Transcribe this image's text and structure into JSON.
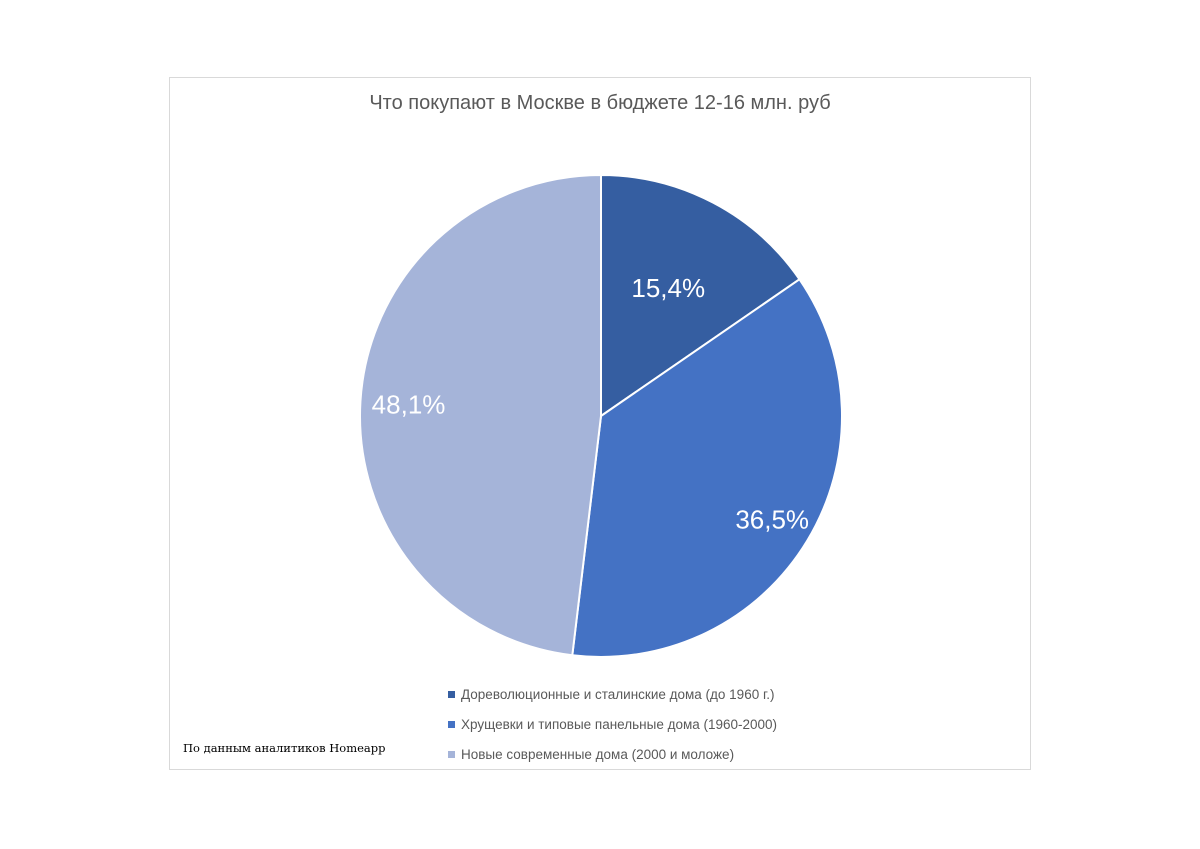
{
  "chart_data": {
    "type": "pie",
    "title": "Что покупают в Москве в бюджете 12-16 млн. руб",
    "slices": [
      {
        "name": "Дореволюционные и сталинские дома (до 1960 г.)",
        "value": 15.4,
        "label": "15,4%",
        "color": "#355ea1"
      },
      {
        "name": "Хрущевки и типовые панельные дома (1960-2000)",
        "value": 36.5,
        "label": "36,5%",
        "color": "#4472c4"
      },
      {
        "name": "Новые современные дома (2000 и моложе)",
        "value": 48.1,
        "label": "48,1%",
        "color": "#a5b4d9"
      }
    ],
    "legend_position": "bottom"
  },
  "source_note": "По данным аналитиков Homeapp"
}
